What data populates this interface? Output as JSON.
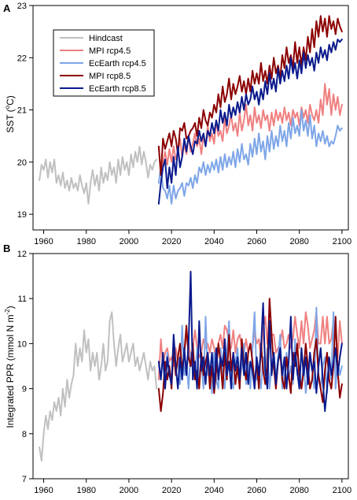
{
  "colors": {
    "Hindcast": "#c0c0c0",
    "MPI rcp4.5": "#f08080",
    "EcEarth rcp4.5": "#7ea6e8",
    "MPI rcp8.5": "#8b0000",
    "EcEarth rcp8.5": "#0a1a8c"
  },
  "chart_data": [
    {
      "panel_label": "A",
      "type": "line",
      "ylabel": "SST (°C)",
      "ylabel_main": "SST (",
      "ylabel_sup": "o",
      "ylabel_end": "C)",
      "xlim": [
        1955,
        2103
      ],
      "ylim": [
        18.7,
        23
      ],
      "xticks": [
        1960,
        1980,
        2000,
        2020,
        2040,
        2060,
        2080,
        2100
      ],
      "yticks": [
        19,
        20,
        21,
        22,
        23
      ],
      "legend_position": "top-left",
      "legend": [
        "Hindcast",
        "MPI rcp4.5",
        "EcEarth rcp4.5",
        "MPI rcp8.5",
        "EcEarth rcp8.5"
      ],
      "series": [
        {
          "name": "Hindcast",
          "x_start": 1958,
          "values": [
            19.65,
            19.95,
            19.85,
            20.05,
            19.7,
            20.0,
            19.8,
            20.05,
            19.6,
            19.75,
            19.55,
            19.8,
            19.5,
            19.65,
            19.45,
            19.7,
            19.5,
            19.6,
            19.45,
            19.75,
            19.55,
            19.4,
            19.6,
            19.2,
            19.6,
            19.85,
            19.55,
            19.75,
            19.45,
            19.9,
            19.6,
            19.8,
            19.65,
            20.0,
            19.75,
            19.9,
            19.6,
            20.05,
            19.75,
            20.1,
            19.85,
            20.0,
            19.75,
            20.15,
            19.9,
            20.2,
            20.0,
            20.3,
            19.95,
            20.2,
            20.0,
            19.7,
            19.95,
            19.85,
            20.0,
            20.05
          ]
        },
        {
          "name": "MPI rcp4.5",
          "x_start": 2014,
          "values": [
            20.3,
            19.75,
            20.0,
            20.2,
            19.95,
            20.25,
            20.0,
            20.3,
            20.05,
            20.2,
            20.45,
            20.1,
            20.35,
            20.15,
            20.5,
            20.2,
            20.35,
            20.55,
            20.3,
            20.45,
            20.15,
            20.5,
            20.3,
            20.7,
            20.4,
            20.55,
            20.35,
            20.8,
            20.5,
            20.6,
            20.4,
            20.85,
            20.55,
            20.7,
            20.9,
            20.6,
            20.75,
            20.5,
            20.95,
            20.6,
            20.8,
            21.1,
            20.7,
            20.9,
            20.6,
            21.05,
            20.75,
            20.9,
            20.65,
            21.0,
            20.8,
            20.9,
            20.6,
            20.95,
            20.7,
            21.0,
            20.8,
            20.95,
            20.75,
            21.05,
            20.8,
            20.95,
            20.7,
            21.0,
            20.85,
            20.95,
            20.7,
            21.05,
            20.85,
            21.0,
            20.75,
            21.1,
            20.9,
            20.8,
            21.0,
            20.75,
            21.2,
            20.9,
            21.5,
            21.1,
            21.4,
            20.9,
            21.3,
            21.0,
            21.25,
            20.9,
            21.1
          ]
        },
        {
          "name": "EcEarth rcp4.5",
          "x_start": 2014,
          "values": [
            19.6,
            19.9,
            19.5,
            19.45,
            19.3,
            19.55,
            19.2,
            19.55,
            19.3,
            19.45,
            19.5,
            19.6,
            19.35,
            19.6,
            19.55,
            19.7,
            19.5,
            19.75,
            19.6,
            19.9,
            19.8,
            20.0,
            19.75,
            19.95,
            19.8,
            20.0,
            19.85,
            20.05,
            19.8,
            20.1,
            19.85,
            20.15,
            19.9,
            20.1,
            19.95,
            20.2,
            19.9,
            20.25,
            20.0,
            20.35,
            20.05,
            20.15,
            19.95,
            20.35,
            20.1,
            20.45,
            20.15,
            20.55,
            20.2,
            20.4,
            20.05,
            20.5,
            20.2,
            20.6,
            20.25,
            20.5,
            20.3,
            20.7,
            20.4,
            20.6,
            20.3,
            20.75,
            20.45,
            20.85,
            20.55,
            20.7,
            20.5,
            21.0,
            20.6,
            20.8,
            20.5,
            20.9,
            20.45,
            20.7,
            20.3,
            20.55,
            20.4,
            20.6,
            20.35,
            20.5,
            20.3,
            20.4,
            20.35,
            20.5,
            20.7,
            20.6,
            20.65
          ]
        },
        {
          "name": "MPI rcp8.5",
          "x_start": 2014,
          "values": [
            20.3,
            19.75,
            20.45,
            20.25,
            20.4,
            20.55,
            20.3,
            20.6,
            20.45,
            20.15,
            20.65,
            20.6,
            20.75,
            20.45,
            20.5,
            20.6,
            20.65,
            20.75,
            20.5,
            20.85,
            20.65,
            21.0,
            20.8,
            20.7,
            20.95,
            20.85,
            21.1,
            20.95,
            21.3,
            21.05,
            21.45,
            21.15,
            21.3,
            21.6,
            21.2,
            21.5,
            21.3,
            21.45,
            21.65,
            21.35,
            21.55,
            21.3,
            21.6,
            21.35,
            21.75,
            21.5,
            21.7,
            21.5,
            21.9,
            21.55,
            21.75,
            21.5,
            21.85,
            21.6,
            22.0,
            21.7,
            21.85,
            21.6,
            22.05,
            21.8,
            22.2,
            21.9,
            22.05,
            21.8,
            22.3,
            21.9,
            22.2,
            21.85,
            22.2,
            21.95,
            22.4,
            22.1,
            22.55,
            22.2,
            22.7,
            22.4,
            22.8,
            22.5,
            22.75,
            22.4,
            22.8,
            22.55,
            22.7,
            22.45,
            22.75,
            22.6,
            22.5
          ]
        },
        {
          "name": "EcEarth rcp8.5",
          "x_start": 2014,
          "values": [
            19.2,
            19.6,
            19.9,
            20.05,
            19.5,
            19.9,
            19.6,
            20.1,
            19.75,
            20.3,
            19.9,
            20.1,
            20.45,
            20.2,
            20.5,
            20.3,
            20.15,
            20.4,
            20.35,
            20.6,
            20.4,
            20.55,
            20.3,
            20.6,
            20.5,
            20.75,
            20.55,
            20.8,
            20.6,
            21.0,
            20.75,
            20.95,
            20.7,
            21.1,
            20.85,
            21.05,
            20.9,
            21.15,
            20.95,
            21.25,
            21.0,
            21.3,
            21.1,
            21.2,
            21.45,
            21.2,
            21.35,
            21.1,
            21.4,
            21.2,
            21.55,
            21.3,
            21.7,
            21.4,
            21.6,
            21.35,
            21.8,
            21.5,
            21.75,
            21.55,
            21.85,
            21.6,
            22.0,
            21.7,
            21.9,
            21.6,
            21.95,
            21.7,
            22.1,
            21.8,
            22.05,
            21.85,
            22.0,
            21.75,
            22.1,
            21.9,
            22.2,
            22.0,
            22.15,
            21.95,
            22.25,
            22.1,
            22.3,
            22.15,
            22.35,
            22.3,
            22.35
          ]
        }
      ]
    },
    {
      "panel_label": "B",
      "type": "line",
      "ylabel": "Integrated PPR (mmol N m-2)",
      "ylabel_main": "Integrated PPR (mmol N m",
      "ylabel_sup": "-2",
      "ylabel_end": ")",
      "xlim": [
        1955,
        2103
      ],
      "ylim": [
        7,
        12
      ],
      "xticks": [
        1960,
        1980,
        2000,
        2020,
        2040,
        2060,
        2080,
        2100
      ],
      "yticks": [
        7,
        8,
        9,
        10,
        11,
        12
      ],
      "series": [
        {
          "name": "Hindcast",
          "x_start": 1958,
          "values": [
            7.7,
            7.4,
            8.0,
            8.4,
            8.1,
            8.5,
            8.3,
            8.7,
            8.5,
            8.8,
            8.4,
            9.0,
            8.6,
            9.2,
            8.8,
            9.1,
            9.3,
            10.0,
            9.5,
            9.9,
            9.6,
            10.3,
            9.8,
            10.1,
            9.4,
            9.8,
            9.5,
            9.8,
            9.2,
            9.5,
            10.0,
            9.4,
            9.6,
            10.5,
            10.7,
            10.0,
            9.5,
            9.9,
            10.2,
            9.6,
            9.8,
            10.0,
            9.6,
            9.8,
            10.0,
            9.5,
            9.7,
            9.4,
            9.6,
            9.8,
            9.5,
            9.2,
            9.6,
            9.4,
            9.5,
            9.0
          ]
        },
        {
          "name": "MPI rcp4.5",
          "x_start": 2014,
          "values": [
            9.2,
            10.1,
            9.5,
            9.8,
            9.9,
            9.6,
            9.7,
            9.5,
            9.9,
            9.6,
            9.7,
            10.0,
            9.8,
            10.2,
            10.0,
            9.7,
            9.9,
            10.3,
            9.9,
            9.7,
            9.8,
            10.1,
            9.9,
            10.0,
            9.8,
            10.1,
            9.9,
            9.6,
            10.0,
            10.2,
            9.9,
            10.4,
            10.3,
            10.0,
            9.9,
            10.3,
            9.8,
            10.1,
            10.2,
            9.9,
            9.8,
            10.1,
            9.8,
            10.0,
            9.9,
            10.3,
            10.0,
            10.1,
            9.7,
            10.3,
            10.6,
            10.0,
            9.9,
            10.2,
            10.2,
            9.8,
            9.9,
            10.0,
            10.3,
            9.9,
            10.0,
            10.2,
            9.9,
            10.1,
            10.6,
            10.2,
            9.9,
            10.5,
            10.0,
            10.7,
            10.4,
            9.9,
            10.1,
            10.3,
            10.7,
            10.0,
            10.0,
            10.6,
            10.0,
            10.6,
            10.0,
            10.1,
            10.5,
            10.3,
            9.7,
            10.5,
            10.0
          ]
        },
        {
          "name": "EcEarth rcp4.5",
          "x_start": 2014,
          "values": [
            9.5,
            9.3,
            9.6,
            9.0,
            9.8,
            9.4,
            9.2,
            9.9,
            9.3,
            9.7,
            9.1,
            10.4,
            9.3,
            9.6,
            9.0,
            9.8,
            9.4,
            9.3,
            9.9,
            9.2,
            9.6,
            9.0,
            10.6,
            9.3,
            9.5,
            8.9,
            9.8,
            9.2,
            9.0,
            9.9,
            9.4,
            9.0,
            9.8,
            10.5,
            9.2,
            9.0,
            9.6,
            9.9,
            9.2,
            9.5,
            10.0,
            9.1,
            9.6,
            9.0,
            9.9,
            10.7,
            9.2,
            9.4,
            9.0,
            9.7,
            9.3,
            9.9,
            9.0,
            9.5,
            9.8,
            9.2,
            9.7,
            10.2,
            9.0,
            9.4,
            9.8,
            9.2,
            9.5,
            9.1,
            10.1,
            9.3,
            9.5,
            9.0,
            9.6,
            8.9,
            9.3,
            9.8,
            9.4,
            9.0,
            10.8,
            9.2,
            9.0,
            9.5,
            9.7,
            8.9,
            9.6,
            9.2,
            10.7,
            9.0,
            9.6,
            9.3,
            9.5
          ]
        },
        {
          "name": "MPI rcp8.5",
          "x_start": 2014,
          "values": [
            9.0,
            8.5,
            8.9,
            9.6,
            9.2,
            9.5,
            9.0,
            9.9,
            9.3,
            9.7,
            10.0,
            9.4,
            9.8,
            10.4,
            9.7,
            9.5,
            10.0,
            9.2,
            9.4,
            9.0,
            9.8,
            9.3,
            9.6,
            9.8,
            9.0,
            9.5,
            8.9,
            9.4,
            10.0,
            9.6,
            9.0,
            9.8,
            9.2,
            10.2,
            9.4,
            9.8,
            9.1,
            9.5,
            9.0,
            10.1,
            9.5,
            9.2,
            9.8,
            10.0,
            9.6,
            9.1,
            9.6,
            9.0,
            10.0,
            9.4,
            9.1,
            9.5,
            11.0,
            10.2,
            9.5,
            9.0,
            9.6,
            9.8,
            9.2,
            9.0,
            9.7,
            9.3,
            8.9,
            9.8,
            9.5,
            10.0,
            9.3,
            9.0,
            9.4,
            10.0,
            9.5,
            9.0,
            9.2,
            9.8,
            10.1,
            9.3,
            9.0,
            8.7,
            9.4,
            9.8,
            9.2,
            9.0,
            9.5,
            10.6,
            9.4,
            8.8,
            9.1
          ]
        },
        {
          "name": "EcEarth rcp8.5",
          "x_start": 2014,
          "values": [
            9.6,
            9.2,
            9.8,
            9.0,
            9.7,
            9.3,
            9.1,
            10.2,
            9.5,
            9.0,
            9.7,
            9.2,
            9.9,
            9.3,
            10.0,
            11.6,
            9.2,
            9.6,
            9.0,
            10.5,
            9.4,
            9.7,
            9.1,
            9.8,
            9.3,
            9.8,
            9.0,
            9.9,
            9.2,
            9.7,
            9.5,
            10.1,
            9.3,
            9.6,
            9.0,
            9.8,
            9.4,
            9.7,
            9.2,
            9.9,
            9.3,
            9.8,
            9.1,
            9.6,
            9.4,
            9.0,
            9.7,
            9.3,
            9.9,
            10.9,
            9.4,
            9.0,
            10.5,
            9.3,
            9.8,
            9.1,
            9.6,
            9.9,
            9.3,
            9.7,
            9.0,
            9.6,
            10.6,
            9.2,
            9.8,
            9.4,
            9.0,
            9.9,
            9.3,
            9.7,
            9.1,
            9.8,
            9.4,
            9.6,
            8.9,
            9.5,
            9.9,
            9.2,
            8.5,
            9.0,
            9.7,
            9.3,
            9.6,
            9.9,
            9.3,
            9.7,
            10.0
          ]
        }
      ]
    }
  ]
}
